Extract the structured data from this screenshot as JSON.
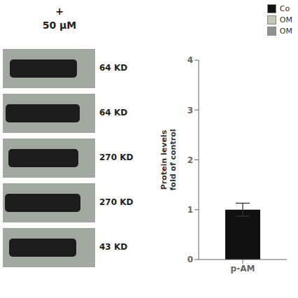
{
  "chart_data": {
    "type": "bar",
    "annotations": [
      "+",
      "50 μM",
      "64 KD",
      "64 KD",
      "270 KD",
      "270 KD",
      "43 KD"
    ],
    "categories": [
      "p-AM"
    ],
    "series": [
      {
        "name": "Co",
        "color": "#111111",
        "values": [
          1.0
        ],
        "errors": [
          0.13
        ]
      },
      {
        "name": "OM",
        "color": "#c0c8b0",
        "values": [
          null
        ]
      },
      {
        "name": "OM",
        "color": "#909090",
        "values": [
          null
        ]
      }
    ],
    "ylabel": "Protein levels\nfold of control",
    "ylim": [
      0,
      4
    ],
    "yticks": [
      0,
      1,
      2,
      3,
      4
    ],
    "legend": "upper right",
    "grid": false
  }
}
